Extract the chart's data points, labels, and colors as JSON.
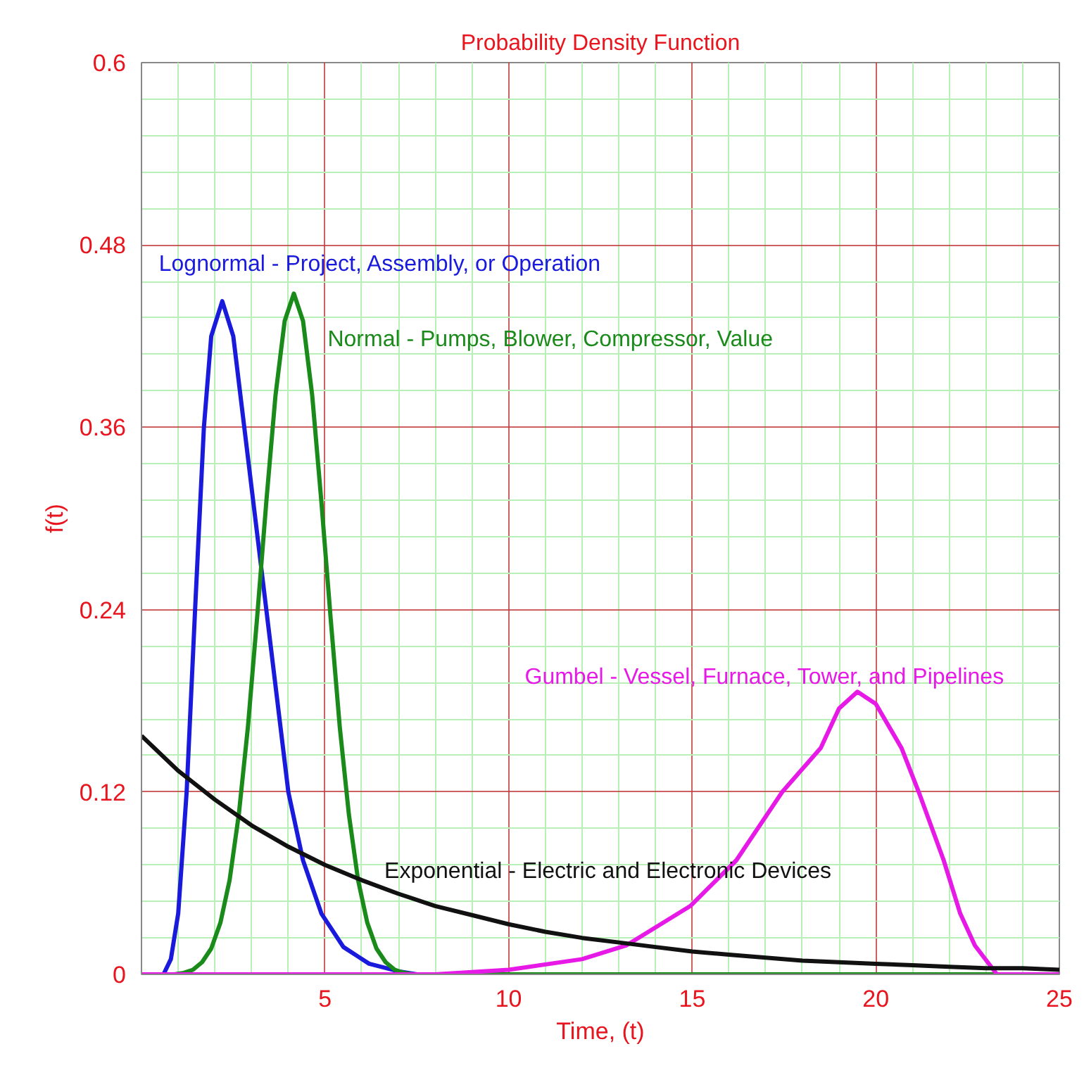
{
  "chart_data": {
    "type": "line",
    "title": "Probability Density Function",
    "xlabel": "Time, (t)",
    "ylabel": "f(t)",
    "xlim": [
      0,
      25
    ],
    "ylim": [
      0,
      0.6
    ],
    "xticks": [
      {
        "value": 1,
        "label": null
      },
      {
        "value": 2,
        "label": null
      },
      {
        "value": 3,
        "label": null
      },
      {
        "value": 4,
        "label": null
      },
      5,
      {
        "value": 6,
        "label": null
      },
      {
        "value": 7,
        "label": null
      },
      {
        "value": 8,
        "label": null
      },
      {
        "value": 9,
        "label": null
      },
      10,
      {
        "value": 11,
        "label": null
      },
      {
        "value": 12,
        "label": null
      },
      {
        "value": 13,
        "label": null
      },
      {
        "value": 14,
        "label": null
      },
      15,
      {
        "value": 16,
        "label": null
      },
      {
        "value": 17,
        "label": null
      },
      {
        "value": 18,
        "label": null
      },
      {
        "value": 19,
        "label": null
      },
      20,
      {
        "value": 21,
        "label": null
      },
      {
        "value": 22,
        "label": null
      },
      {
        "value": 23,
        "label": null
      },
      {
        "value": 24,
        "label": null
      },
      25
    ],
    "yticks": [
      0,
      {
        "value": 0.024,
        "label": null
      },
      {
        "value": 0.048,
        "label": null
      },
      {
        "value": 0.072,
        "label": null
      },
      {
        "value": 0.096,
        "label": null
      },
      0.12,
      {
        "value": 0.144,
        "label": null
      },
      {
        "value": 0.168,
        "label": null
      },
      {
        "value": 0.192,
        "label": null
      },
      {
        "value": 0.216,
        "label": null
      },
      0.24,
      {
        "value": 0.264,
        "label": null
      },
      {
        "value": 0.288,
        "label": null
      },
      {
        "value": 0.312,
        "label": null
      },
      {
        "value": 0.336,
        "label": null
      },
      0.36,
      {
        "value": 0.384,
        "label": null
      },
      {
        "value": 0.408,
        "label": null
      },
      {
        "value": 0.432,
        "label": null
      },
      {
        "value": 0.456,
        "label": null
      },
      0.48,
      {
        "value": 0.504,
        "label": null
      },
      {
        "value": 0.528,
        "label": null
      },
      {
        "value": 0.552,
        "label": null
      },
      {
        "value": 0.576,
        "label": null
      },
      0.6
    ],
    "grid": true,
    "marker": "none",
    "line_style": "solid",
    "series": [
      {
        "name": "Lognormal - Project, Assembly, or Operation",
        "color": "#1a1adc",
        "x": [
          0,
          0.6,
          0.8,
          1.0,
          1.23,
          1.46,
          1.7,
          1.9,
          2.2,
          2.5,
          2.8,
          3.1,
          3.4,
          3.7,
          4.0,
          4.4,
          4.9,
          5.5,
          6.2,
          7.0,
          7.5
        ],
        "values": [
          0,
          0,
          0.01,
          0.04,
          0.12,
          0.24,
          0.36,
          0.42,
          0.443,
          0.42,
          0.36,
          0.3,
          0.24,
          0.18,
          0.12,
          0.075,
          0.04,
          0.018,
          0.007,
          0.002,
          0
        ]
      },
      {
        "name": "Normal - Pumps, Blower, Compressor, Value",
        "color": "#1a8a1a",
        "x": [
          0,
          0.9,
          1.15,
          1.4,
          1.65,
          1.9,
          2.15,
          2.4,
          2.65,
          2.9,
          3.15,
          3.4,
          3.65,
          3.9,
          4.15,
          4.4,
          4.65,
          4.9,
          5.15,
          5.4,
          5.65,
          5.9,
          6.15,
          6.4,
          6.65,
          6.9,
          7.15,
          7.4,
          25
        ],
        "values": [
          0,
          0,
          0.001,
          0.003,
          0.008,
          0.017,
          0.034,
          0.062,
          0.105,
          0.163,
          0.235,
          0.311,
          0.381,
          0.43,
          0.448,
          0.43,
          0.381,
          0.311,
          0.235,
          0.163,
          0.105,
          0.062,
          0.034,
          0.017,
          0.008,
          0.003,
          0.001,
          0,
          0
        ]
      },
      {
        "name": "Gumbel - Vessel, Furnace, Tower, and Pipelines",
        "color": "#e619e6",
        "x": [
          0,
          8,
          10,
          12,
          13.2,
          14.95,
          16.2,
          17.45,
          18.5,
          19,
          19.5,
          20,
          20.7,
          21.17,
          21.85,
          22.3,
          22.7,
          23.3,
          25
        ],
        "values": [
          0,
          0,
          0.003,
          0.01,
          0.019,
          0.045,
          0.075,
          0.12,
          0.149,
          0.175,
          0.186,
          0.178,
          0.149,
          0.12,
          0.075,
          0.04,
          0.019,
          0,
          0
        ]
      },
      {
        "name": "Exponential - Electric and Electronic Devices",
        "color": "#111111",
        "x": [
          0,
          1,
          2,
          3,
          4,
          5,
          6,
          7,
          8,
          9,
          10,
          11,
          12,
          13,
          14,
          15,
          16,
          17,
          18,
          19,
          20,
          21,
          22,
          23,
          24,
          25
        ],
        "values": [
          0.157,
          0.134,
          0.115,
          0.098,
          0.084,
          0.072,
          0.062,
          0.053,
          0.045,
          0.039,
          0.033,
          0.028,
          0.024,
          0.021,
          0.018,
          0.015,
          0.013,
          0.011,
          0.009,
          0.008,
          0.007,
          0.006,
          0.005,
          0.004,
          0.004,
          0.003
        ]
      }
    ]
  }
}
